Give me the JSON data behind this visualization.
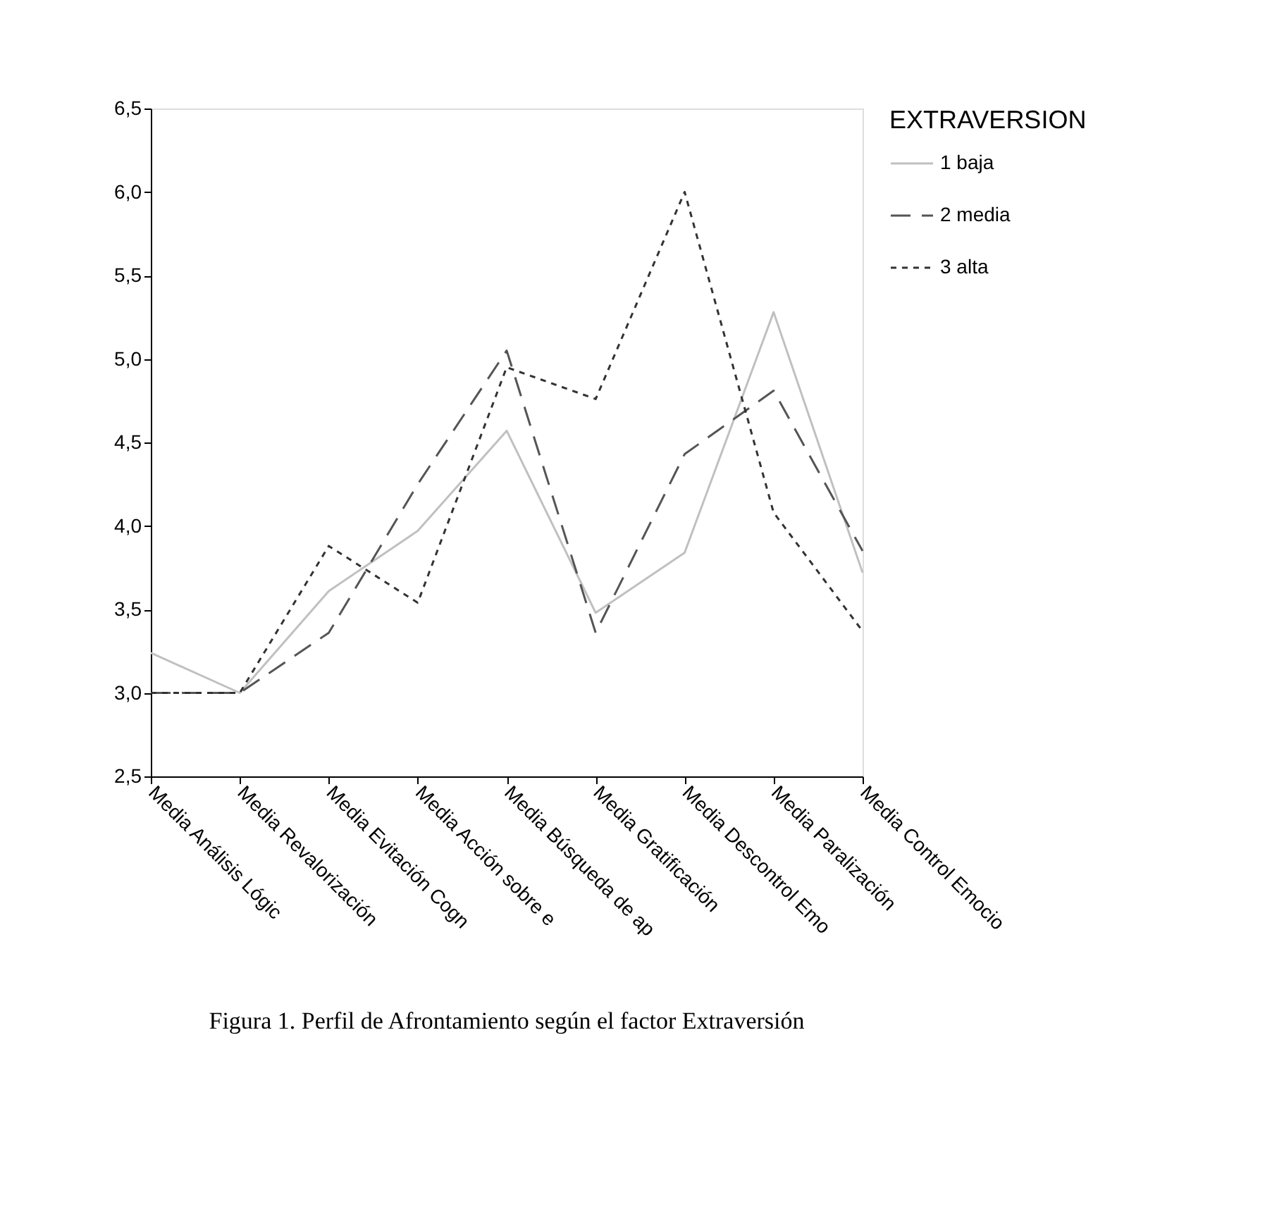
{
  "chart_data": {
    "type": "line",
    "categories": [
      "Media Análisis Lógic",
      "Media Revalorización",
      "Media Evitación Cogn",
      "Media Acción sobre e",
      "Media Búsqueda de ap",
      "Media Gratificación",
      "Media Descontrol Emo",
      "Media Paralización",
      "Media Control Emocio"
    ],
    "series": [
      {
        "name": "1 baja",
        "color": "#c0c0c0",
        "line_style": "solid",
        "values": [
          3.24,
          3.0,
          3.61,
          3.97,
          4.57,
          3.48,
          3.84,
          5.28,
          3.72
        ]
      },
      {
        "name": "2 media",
        "color": "#555555",
        "line_style": "dashed",
        "values": [
          3.0,
          3.0,
          3.36,
          4.25,
          5.05,
          3.36,
          4.43,
          4.81,
          3.85
        ]
      },
      {
        "name": "3 alta",
        "color": "#333333",
        "line_style": "dotted",
        "values": [
          3.0,
          3.0,
          3.88,
          3.54,
          4.95,
          4.76,
          6.0,
          4.08,
          3.37
        ]
      }
    ],
    "legend_title": "EXTRAVERSION",
    "legend": "right",
    "ylim": [
      2.5,
      6.5
    ],
    "yticks": [
      {
        "value": 2.5,
        "label": "2,5"
      },
      {
        "value": 3.0,
        "label": "3,0"
      },
      {
        "value": 3.5,
        "label": "3,5"
      },
      {
        "value": 4.0,
        "label": "4,0"
      },
      {
        "value": 4.5,
        "label": "4,5"
      },
      {
        "value": 5.0,
        "label": "5,0"
      },
      {
        "value": 5.5,
        "label": "5,5"
      },
      {
        "value": 6.0,
        "label": "6,0"
      },
      {
        "value": 6.5,
        "label": "6,5"
      }
    ],
    "grid": false,
    "annotations": [
      "Figura 1. Perfil de Afrontamiento según el factor Extraversión"
    ]
  }
}
